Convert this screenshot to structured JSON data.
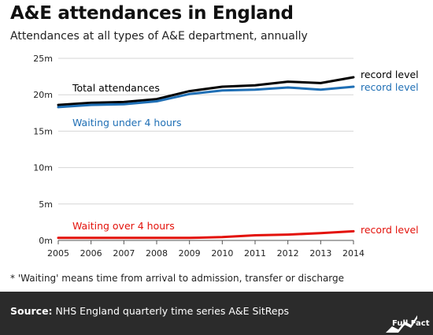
{
  "header": {
    "title": "A&E attendances in England",
    "subtitle": "Attendances at all types of A&E department, annually"
  },
  "footnote": "* 'Waiting' means time from arrival to admission, transfer or discharge",
  "footer": {
    "source_label": "Source:",
    "source_text": " NHS England quarterly time series A&E SitReps",
    "logo_text": "Full Fact"
  },
  "chart_data": {
    "type": "line",
    "x": [
      2005,
      2006,
      2007,
      2008,
      2009,
      2010,
      2011,
      2012,
      2013,
      2014
    ],
    "ylim": [
      0,
      25
    ],
    "yticks": [
      0,
      5,
      10,
      15,
      20,
      25
    ],
    "ytick_labels": [
      "0m",
      "5m",
      "10m",
      "15m",
      "20m",
      "25m"
    ],
    "grid": "horizontal",
    "series": [
      {
        "name": "Total attendances",
        "values": [
          18.6,
          18.9,
          19.0,
          19.4,
          20.5,
          21.1,
          21.3,
          21.8,
          21.6,
          22.4
        ],
        "color": "#000000",
        "end_label": "record level"
      },
      {
        "name": "Waiting under 4 hours",
        "values": [
          18.3,
          18.6,
          18.7,
          19.1,
          20.1,
          20.6,
          20.7,
          21.0,
          20.7,
          21.1
        ],
        "color": "#1f6fb5",
        "end_label": "record level"
      },
      {
        "name": "Waiting over 4 hours",
        "values": [
          0.35,
          0.35,
          0.35,
          0.35,
          0.35,
          0.45,
          0.7,
          0.8,
          1.0,
          1.25
        ],
        "color": "#e3120b",
        "end_label": "record level"
      }
    ]
  }
}
